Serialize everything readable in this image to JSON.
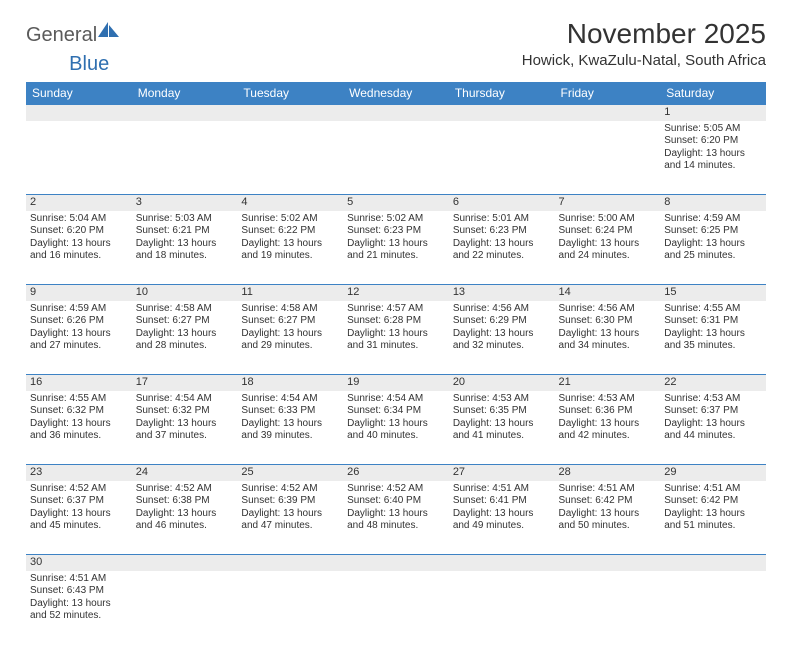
{
  "logo": {
    "word1": "General",
    "word2": "Blue"
  },
  "title": "November 2025",
  "subtitle": "Howick, KwaZulu-Natal, South Africa",
  "header_bg": "#3d82c4",
  "header_text_color": "#ffffff",
  "daynum_bg": "#ececec",
  "rule_color": "#3d82c4",
  "days": [
    "Sunday",
    "Monday",
    "Tuesday",
    "Wednesday",
    "Thursday",
    "Friday",
    "Saturday"
  ],
  "weeks": [
    [
      null,
      null,
      null,
      null,
      null,
      null,
      {
        "n": "1",
        "sr": "Sunrise: 5:05 AM",
        "ss": "Sunset: 6:20 PM",
        "d1": "Daylight: 13 hours",
        "d2": "and 14 minutes."
      }
    ],
    [
      {
        "n": "2",
        "sr": "Sunrise: 5:04 AM",
        "ss": "Sunset: 6:20 PM",
        "d1": "Daylight: 13 hours",
        "d2": "and 16 minutes."
      },
      {
        "n": "3",
        "sr": "Sunrise: 5:03 AM",
        "ss": "Sunset: 6:21 PM",
        "d1": "Daylight: 13 hours",
        "d2": "and 18 minutes."
      },
      {
        "n": "4",
        "sr": "Sunrise: 5:02 AM",
        "ss": "Sunset: 6:22 PM",
        "d1": "Daylight: 13 hours",
        "d2": "and 19 minutes."
      },
      {
        "n": "5",
        "sr": "Sunrise: 5:02 AM",
        "ss": "Sunset: 6:23 PM",
        "d1": "Daylight: 13 hours",
        "d2": "and 21 minutes."
      },
      {
        "n": "6",
        "sr": "Sunrise: 5:01 AM",
        "ss": "Sunset: 6:23 PM",
        "d1": "Daylight: 13 hours",
        "d2": "and 22 minutes."
      },
      {
        "n": "7",
        "sr": "Sunrise: 5:00 AM",
        "ss": "Sunset: 6:24 PM",
        "d1": "Daylight: 13 hours",
        "d2": "and 24 minutes."
      },
      {
        "n": "8",
        "sr": "Sunrise: 4:59 AM",
        "ss": "Sunset: 6:25 PM",
        "d1": "Daylight: 13 hours",
        "d2": "and 25 minutes."
      }
    ],
    [
      {
        "n": "9",
        "sr": "Sunrise: 4:59 AM",
        "ss": "Sunset: 6:26 PM",
        "d1": "Daylight: 13 hours",
        "d2": "and 27 minutes."
      },
      {
        "n": "10",
        "sr": "Sunrise: 4:58 AM",
        "ss": "Sunset: 6:27 PM",
        "d1": "Daylight: 13 hours",
        "d2": "and 28 minutes."
      },
      {
        "n": "11",
        "sr": "Sunrise: 4:58 AM",
        "ss": "Sunset: 6:27 PM",
        "d1": "Daylight: 13 hours",
        "d2": "and 29 minutes."
      },
      {
        "n": "12",
        "sr": "Sunrise: 4:57 AM",
        "ss": "Sunset: 6:28 PM",
        "d1": "Daylight: 13 hours",
        "d2": "and 31 minutes."
      },
      {
        "n": "13",
        "sr": "Sunrise: 4:56 AM",
        "ss": "Sunset: 6:29 PM",
        "d1": "Daylight: 13 hours",
        "d2": "and 32 minutes."
      },
      {
        "n": "14",
        "sr": "Sunrise: 4:56 AM",
        "ss": "Sunset: 6:30 PM",
        "d1": "Daylight: 13 hours",
        "d2": "and 34 minutes."
      },
      {
        "n": "15",
        "sr": "Sunrise: 4:55 AM",
        "ss": "Sunset: 6:31 PM",
        "d1": "Daylight: 13 hours",
        "d2": "and 35 minutes."
      }
    ],
    [
      {
        "n": "16",
        "sr": "Sunrise: 4:55 AM",
        "ss": "Sunset: 6:32 PM",
        "d1": "Daylight: 13 hours",
        "d2": "and 36 minutes."
      },
      {
        "n": "17",
        "sr": "Sunrise: 4:54 AM",
        "ss": "Sunset: 6:32 PM",
        "d1": "Daylight: 13 hours",
        "d2": "and 37 minutes."
      },
      {
        "n": "18",
        "sr": "Sunrise: 4:54 AM",
        "ss": "Sunset: 6:33 PM",
        "d1": "Daylight: 13 hours",
        "d2": "and 39 minutes."
      },
      {
        "n": "19",
        "sr": "Sunrise: 4:54 AM",
        "ss": "Sunset: 6:34 PM",
        "d1": "Daylight: 13 hours",
        "d2": "and 40 minutes."
      },
      {
        "n": "20",
        "sr": "Sunrise: 4:53 AM",
        "ss": "Sunset: 6:35 PM",
        "d1": "Daylight: 13 hours",
        "d2": "and 41 minutes."
      },
      {
        "n": "21",
        "sr": "Sunrise: 4:53 AM",
        "ss": "Sunset: 6:36 PM",
        "d1": "Daylight: 13 hours",
        "d2": "and 42 minutes."
      },
      {
        "n": "22",
        "sr": "Sunrise: 4:53 AM",
        "ss": "Sunset: 6:37 PM",
        "d1": "Daylight: 13 hours",
        "d2": "and 44 minutes."
      }
    ],
    [
      {
        "n": "23",
        "sr": "Sunrise: 4:52 AM",
        "ss": "Sunset: 6:37 PM",
        "d1": "Daylight: 13 hours",
        "d2": "and 45 minutes."
      },
      {
        "n": "24",
        "sr": "Sunrise: 4:52 AM",
        "ss": "Sunset: 6:38 PM",
        "d1": "Daylight: 13 hours",
        "d2": "and 46 minutes."
      },
      {
        "n": "25",
        "sr": "Sunrise: 4:52 AM",
        "ss": "Sunset: 6:39 PM",
        "d1": "Daylight: 13 hours",
        "d2": "and 47 minutes."
      },
      {
        "n": "26",
        "sr": "Sunrise: 4:52 AM",
        "ss": "Sunset: 6:40 PM",
        "d1": "Daylight: 13 hours",
        "d2": "and 48 minutes."
      },
      {
        "n": "27",
        "sr": "Sunrise: 4:51 AM",
        "ss": "Sunset: 6:41 PM",
        "d1": "Daylight: 13 hours",
        "d2": "and 49 minutes."
      },
      {
        "n": "28",
        "sr": "Sunrise: 4:51 AM",
        "ss": "Sunset: 6:42 PM",
        "d1": "Daylight: 13 hours",
        "d2": "and 50 minutes."
      },
      {
        "n": "29",
        "sr": "Sunrise: 4:51 AM",
        "ss": "Sunset: 6:42 PM",
        "d1": "Daylight: 13 hours",
        "d2": "and 51 minutes."
      }
    ],
    [
      {
        "n": "30",
        "sr": "Sunrise: 4:51 AM",
        "ss": "Sunset: 6:43 PM",
        "d1": "Daylight: 13 hours",
        "d2": "and 52 minutes."
      },
      null,
      null,
      null,
      null,
      null,
      null
    ]
  ]
}
